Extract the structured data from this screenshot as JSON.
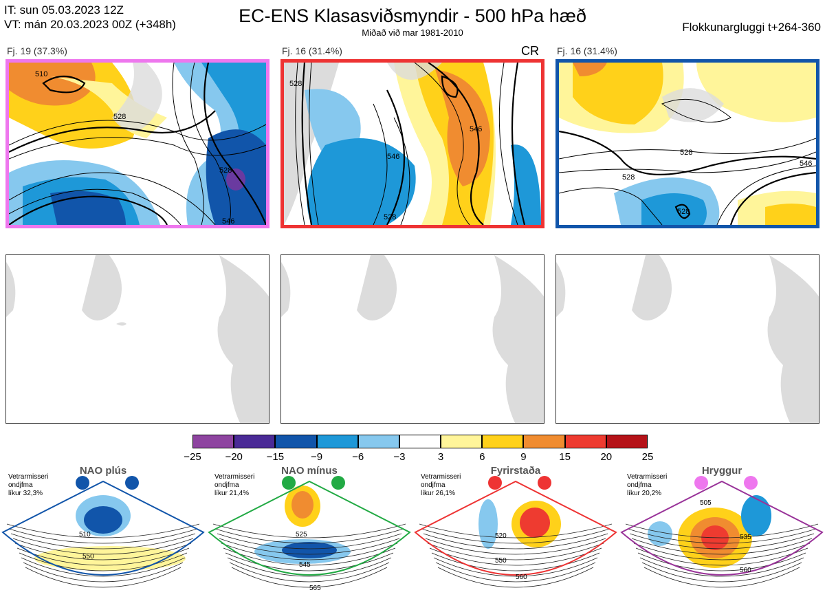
{
  "header": {
    "it": "IT: sun 05.03.2023 12Z",
    "vt": "VT: mán 20.03.2023 00Z  (+348h)",
    "title": "EC-ENS Klasasviðsmyndir - 500 hPa hæð",
    "subtitle": "Miðað við mar 1981-2010",
    "window": "Flokkunargluggi t+264-360"
  },
  "panels": [
    {
      "label": "Fj. 19 (37.3%)",
      "border": "#ee77ee",
      "contours": [
        "510",
        "528",
        "528",
        "546"
      ]
    },
    {
      "label": "Fj. 16 (31.4%)",
      "border": "#ee3333",
      "tag": "CR",
      "contours": [
        "528",
        "546",
        "528",
        "546"
      ]
    },
    {
      "label": "Fj. 16 (31.4%)",
      "border": "#1155aa",
      "contours": [
        "528",
        "528",
        "528",
        "546"
      ]
    }
  ],
  "colorbar": {
    "ticks": [
      "−25",
      "−20",
      "−15",
      "−9",
      "−6",
      "−3",
      "3",
      "6",
      "9",
      "15",
      "20",
      "25"
    ],
    "colors": [
      "#8e44a0",
      "#4a2a96",
      "#1155aa",
      "#1e98d8",
      "#86c8ee",
      "#ffffff",
      "#fff59a",
      "#ffd11a",
      "#f08c30",
      "#ee3b30",
      "#b51218"
    ]
  },
  "regimes": [
    {
      "title": "NAO plús",
      "meta1": "Vetrarmisseri",
      "meta2": "ondjfma",
      "meta3": "líkur 32,3%",
      "dot": "#1155aa",
      "frame": "#1155aa",
      "lbl": [
        "510",
        "550"
      ]
    },
    {
      "title": "NAO mínus",
      "meta1": "Vetrarmisseri",
      "meta2": "ondjfma",
      "meta3": "líkur 21,4%",
      "dot": "#22aa44",
      "frame": "#22aa44",
      "lbl": [
        "525",
        "545",
        "565"
      ]
    },
    {
      "title": "Fyrirstaða",
      "meta1": "Vetrarmisseri",
      "meta2": "ondjfma",
      "meta3": "líkur 26,1%",
      "dot": "#ee3333",
      "frame": "#ee3333",
      "lbl": [
        "520",
        "550",
        "560"
      ]
    },
    {
      "title": "Hryggur",
      "meta1": "Vetrarmisseri",
      "meta2": "ondjfma",
      "meta3": "líkur 20,2%",
      "dot": "#ee77ee",
      "frame": "#993399",
      "lbl": [
        "505",
        "535",
        "560"
      ]
    }
  ]
}
